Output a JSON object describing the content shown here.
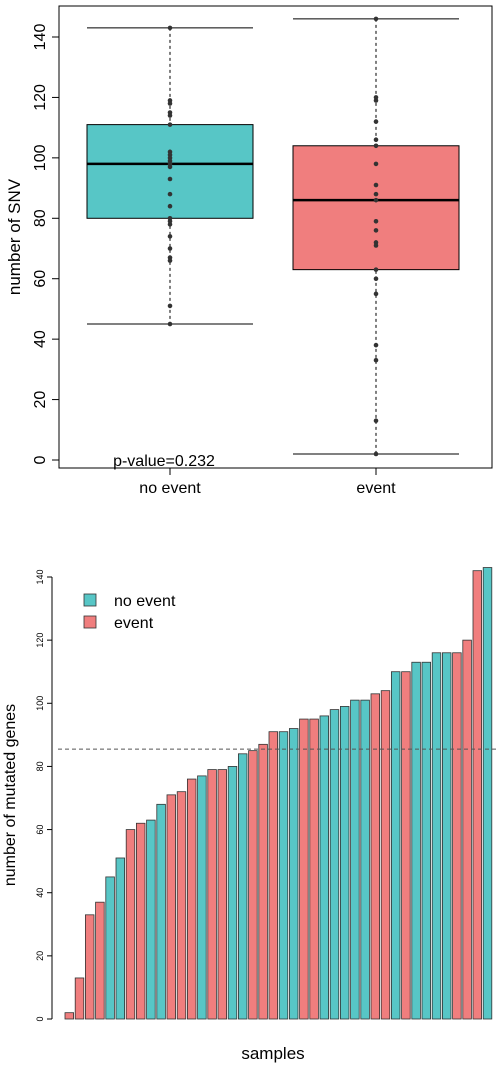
{
  "chart_data": [
    {
      "type": "box",
      "ylabel": "number of SNV",
      "ylim": [
        0,
        150
      ],
      "yticks": [
        0,
        20,
        40,
        60,
        80,
        100,
        120,
        140
      ],
      "annotation": "p-value=0.232",
      "grid": false,
      "groups": [
        {
          "name": "no event",
          "color": "#57c6c6",
          "whisker_low": 45,
          "q1": 80,
          "median": 98,
          "q3": 111,
          "whisker_high": 143,
          "points": [
            143,
            119,
            118,
            115,
            114,
            111,
            102,
            101,
            100,
            99,
            98,
            97,
            93,
            88,
            84,
            80,
            79,
            78,
            74,
            70,
            67,
            66,
            51,
            45
          ]
        },
        {
          "name": "event",
          "color": "#f07e7e",
          "whisker_low": 2,
          "q1": 63,
          "median": 86,
          "q3": 104,
          "whisker_high": 146,
          "points": [
            146,
            120,
            119,
            112,
            106,
            104,
            98,
            91,
            88,
            86,
            79,
            76,
            72,
            71,
            63,
            60,
            55,
            38,
            33,
            13,
            2
          ]
        }
      ]
    },
    {
      "type": "bar",
      "xlabel": "samples",
      "ylabel": "number of mutated genes",
      "ylim": [
        0,
        145
      ],
      "yticks": [
        0,
        20,
        40,
        60,
        80,
        100,
        120,
        140
      ],
      "reference_line": 85.5,
      "legend": {
        "position": "top-left",
        "entries": [
          {
            "name": "no event",
            "color": "#57c6c6"
          },
          {
            "name": "event",
            "color": "#f07e7e"
          }
        ]
      },
      "values": [
        2,
        13,
        33,
        37,
        45,
        51,
        60,
        62,
        63,
        68,
        71,
        72,
        76,
        77,
        79,
        79,
        80,
        84,
        85,
        87,
        91,
        91,
        92,
        95,
        95,
        96,
        98,
        99,
        101,
        101,
        103,
        104,
        110,
        110,
        113,
        113,
        116,
        116,
        116,
        120,
        142,
        143
      ],
      "groups": [
        "event",
        "event",
        "event",
        "event",
        "no event",
        "no event",
        "event",
        "event",
        "no event",
        "no event",
        "event",
        "event",
        "event",
        "no event",
        "event",
        "event",
        "no event",
        "no event",
        "event",
        "event",
        "event",
        "no event",
        "no event",
        "event",
        "event",
        "no event",
        "no event",
        "no event",
        "no event",
        "no event",
        "event",
        "event",
        "no event",
        "event",
        "no event",
        "no event",
        "no event",
        "no event",
        "event",
        "event",
        "event",
        "no event"
      ]
    }
  ]
}
